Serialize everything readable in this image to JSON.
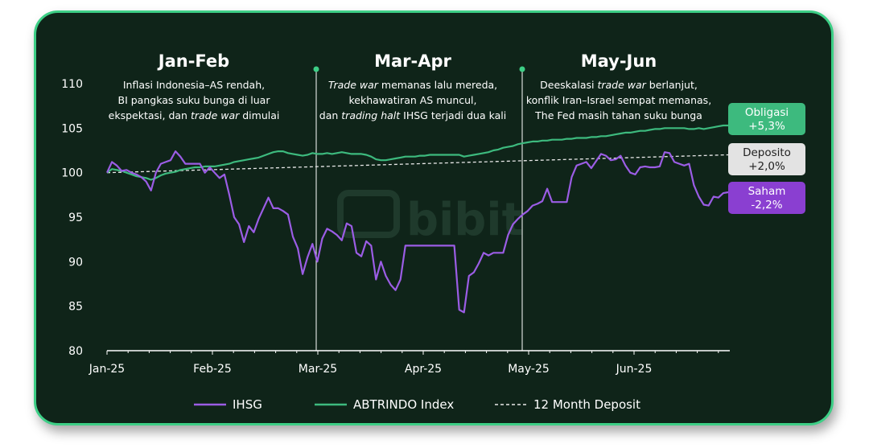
{
  "chart_data": {
    "type": "line",
    "watermark": "bibit",
    "xlabel": "",
    "ylabel": "",
    "ylim": [
      80,
      110
    ],
    "yticks": [
      80,
      85,
      90,
      95,
      100,
      105,
      110
    ],
    "x_tick_labels": [
      "Jan-25",
      "Feb-25",
      "Mar-25",
      "Apr-25",
      "May-25",
      "Jun-25"
    ],
    "grid": false,
    "legend_position": "bottom",
    "sections": [
      {
        "title": "Jan-Feb",
        "lines": [
          [
            {
              "t": "Inflasi Indonesia–AS rendah,",
              "i": false
            }
          ],
          [
            {
              "t": "BI pangkas suku bunga di luar",
              "i": false
            }
          ],
          [
            {
              "t": "ekspektasi, dan ",
              "i": false
            },
            {
              "t": "trade war",
              "i": true
            },
            {
              "t": " dimulai",
              "i": false
            }
          ]
        ]
      },
      {
        "title": "Mar-Apr",
        "lines": [
          [
            {
              "t": "Trade war",
              "i": true
            },
            {
              "t": " memanas lalu mereda,",
              "i": false
            }
          ],
          [
            {
              "t": "kekhawatiran AS muncul,",
              "i": false
            }
          ],
          [
            {
              "t": "dan ",
              "i": false
            },
            {
              "t": "trading halt",
              "i": true
            },
            {
              "t": " IHSG terjadi dua kali",
              "i": false
            }
          ]
        ]
      },
      {
        "title": "May-Jun",
        "lines": [
          [
            {
              "t": "Deeskalasi ",
              "i": false
            },
            {
              "t": "trade war",
              "i": true
            },
            {
              "t": " berlanjut,",
              "i": false
            }
          ],
          [
            {
              "t": "konflik Iran–Israel sempat memanas,",
              "i": false
            }
          ],
          [
            {
              "t": "The Fed masih tahan suku bunga",
              "i": false
            }
          ]
        ]
      }
    ],
    "end_labels": [
      {
        "series": "ABTRINDO Index",
        "line1": "Obligasi",
        "line2": "+5,3%",
        "bg": "#3dba7e",
        "fg": "#ffffff"
      },
      {
        "series": "12 Month Deposit",
        "line1": "Deposito",
        "line2": "+2,0%",
        "bg": "#e3e3e3",
        "fg": "#222222"
      },
      {
        "series": "IHSG",
        "line1": "Saham",
        "line2": "-2,2%",
        "bg": "#8a3fd1",
        "fg": "#ffffff"
      }
    ],
    "series": [
      {
        "name": "IHSG",
        "color": "#9b5de5",
        "dash": false,
        "values": [
          100.0,
          101.2,
          100.8,
          100.2,
          100.3,
          100.0,
          99.8,
          99.5,
          99.0,
          98.0,
          100.0,
          101.0,
          101.2,
          101.4,
          102.4,
          101.8,
          101.0,
          101.0,
          101.0,
          101.0,
          100.0,
          100.6,
          100.0,
          99.4,
          99.8,
          97.5,
          95.0,
          94.2,
          92.2,
          94.0,
          93.3,
          94.8,
          96.0,
          97.2,
          96.0,
          96.0,
          95.7,
          95.3,
          92.8,
          91.5,
          88.6,
          90.5,
          92.0,
          90.0,
          92.6,
          93.7,
          93.4,
          93.0,
          92.4,
          94.3,
          94.0,
          91.0,
          90.6,
          92.3,
          91.8,
          88.0,
          90.0,
          88.4,
          87.4,
          86.8,
          88.0,
          91.8,
          91.8,
          91.8,
          91.8,
          91.8,
          91.8,
          91.8,
          91.8,
          91.8,
          91.8,
          91.8,
          84.6,
          84.3,
          88.4,
          88.8,
          89.8,
          91.0,
          90.7,
          91.0,
          91.0,
          91.0,
          93.0,
          94.2,
          94.8,
          95.3,
          95.7,
          96.3,
          96.5,
          96.8,
          98.2,
          96.7,
          96.7,
          96.7,
          96.7,
          99.5,
          100.8,
          101.0,
          101.2,
          100.5,
          101.3,
          102.1,
          101.9,
          101.4,
          101.5,
          101.9,
          100.8,
          100.0,
          99.8,
          100.6,
          100.7,
          100.6,
          100.6,
          100.7,
          102.3,
          102.2,
          101.2,
          101.0,
          100.8,
          101.0,
          98.6,
          97.3,
          96.4,
          96.3,
          97.3,
          97.2,
          97.7,
          97.8
        ]
      },
      {
        "name": "ABTRINDO Index",
        "color": "#3dba7e",
        "dash": false,
        "values": [
          100.0,
          100.4,
          100.3,
          100.2,
          100.0,
          99.8,
          99.6,
          99.5,
          99.4,
          99.2,
          99.4,
          99.7,
          99.9,
          100.0,
          100.1,
          100.3,
          100.4,
          100.5,
          100.6,
          100.6,
          100.7,
          100.7,
          100.7,
          100.8,
          100.9,
          101.0,
          101.2,
          101.3,
          101.4,
          101.5,
          101.6,
          101.7,
          101.9,
          102.1,
          102.3,
          102.4,
          102.4,
          102.2,
          102.1,
          102.0,
          101.9,
          102.0,
          102.2,
          102.1,
          102.1,
          102.2,
          102.1,
          102.2,
          102.3,
          102.2,
          102.1,
          102.1,
          102.1,
          102.0,
          101.8,
          101.5,
          101.4,
          101.4,
          101.5,
          101.6,
          101.7,
          101.8,
          101.8,
          101.8,
          101.9,
          101.9,
          102.0,
          102.0,
          102.0,
          102.0,
          102.0,
          102.0,
          102.0,
          101.8,
          101.9,
          102.0,
          102.1,
          102.2,
          102.3,
          102.5,
          102.6,
          102.8,
          102.9,
          103.0,
          103.2,
          103.3,
          103.4,
          103.5,
          103.5,
          103.6,
          103.6,
          103.7,
          103.7,
          103.7,
          103.8,
          103.8,
          103.9,
          103.9,
          103.9,
          104.0,
          104.0,
          104.1,
          104.1,
          104.2,
          104.3,
          104.4,
          104.5,
          104.5,
          104.6,
          104.7,
          104.7,
          104.8,
          104.9,
          104.9,
          105.0,
          105.0,
          105.0,
          105.0,
          105.0,
          104.9,
          104.9,
          105.0,
          104.9,
          105.0,
          105.1,
          105.2,
          105.3,
          105.3
        ]
      },
      {
        "name": "12 Month Deposit",
        "color": "#e8e8e8",
        "dash": true,
        "values": [
          100.0,
          102.0
        ]
      }
    ]
  }
}
